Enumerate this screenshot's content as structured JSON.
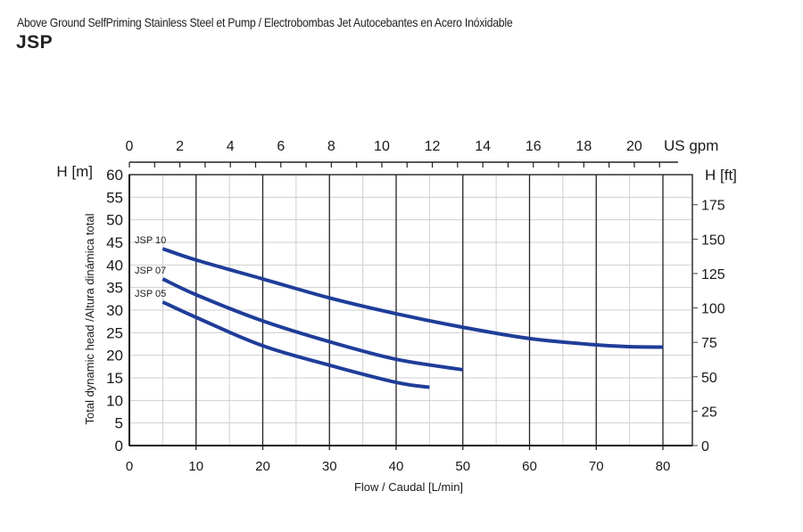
{
  "header": {
    "subtitle": "Above Ground SelfPriming Stainless Steel et Pump / Electrobombas Jet Autocebantes en Acero Inóxidable",
    "title": "JSP"
  },
  "axes": {
    "left_unit": "H [m]",
    "right_unit": "H [ft]",
    "top_unit": "US gpm",
    "left_rotated_label": "Total dynamic head /Altura dinámica total",
    "bottom_label": "Flow / Caudal [L/min]"
  },
  "colors": {
    "curve": "#1f3d99",
    "major_grid": "#1a1a1a",
    "minor_grid": "#cfcfcf"
  },
  "chart_data": {
    "type": "line",
    "title": "JSP",
    "subtitle": "Above Ground SelfPriming Stainless Steel et Pump / Electrobombas Jet Autocebantes en Acero Inóxidable",
    "xlabel": "Flow / Caudal [L/min]",
    "ylabel": "Total dynamic head /Altura dinámica total",
    "xlim": [
      0,
      84.4
    ],
    "ylim": [
      0,
      60
    ],
    "x_ticks": [
      0,
      10,
      20,
      30,
      40,
      50,
      60,
      70,
      80
    ],
    "y_ticks": [
      0,
      5,
      10,
      15,
      20,
      25,
      30,
      35,
      40,
      45,
      50,
      55,
      60
    ],
    "secondary_x": {
      "label": "US gpm",
      "ticks": [
        0,
        2,
        4,
        6,
        8,
        10,
        12,
        14,
        16,
        18,
        20
      ],
      "minor_ticks": [
        1,
        3,
        5,
        7,
        9,
        11,
        13,
        15,
        17,
        19,
        21
      ]
    },
    "secondary_y": {
      "label": "H [ft]",
      "ticks": [
        0,
        25,
        50,
        75,
        100,
        125,
        150,
        175
      ]
    },
    "grid": true,
    "series": [
      {
        "name": "JSP 10",
        "x": [
          5,
          10,
          20,
          30,
          40,
          50,
          60,
          70,
          75,
          80
        ],
        "y": [
          43.6,
          41.1,
          36.9,
          32.7,
          29.2,
          26.2,
          23.7,
          22.3,
          21.9,
          21.8
        ]
      },
      {
        "name": "JSP 07",
        "x": [
          5,
          10,
          20,
          30,
          40,
          50
        ],
        "y": [
          36.9,
          33.4,
          27.6,
          23.0,
          19.1,
          16.8
        ]
      },
      {
        "name": "JSP 05",
        "x": [
          5,
          10,
          20,
          30,
          40,
          45
        ],
        "y": [
          31.8,
          28.4,
          22.1,
          17.8,
          14.0,
          12.9
        ]
      }
    ]
  }
}
